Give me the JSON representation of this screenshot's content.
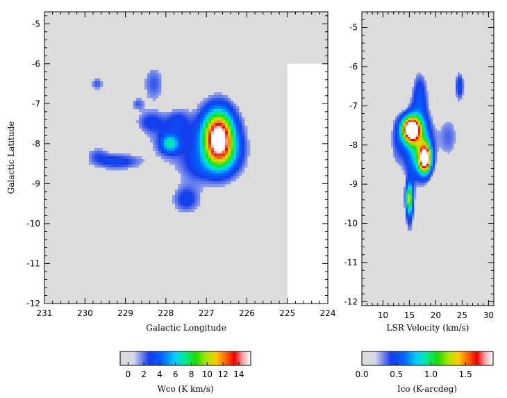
{
  "chart_data": [
    {
      "type": "heatmap",
      "title": "",
      "xlabel": "Galactic Longitude",
      "ylabel": "Galactic Latitude",
      "xlim": [
        231,
        224
      ],
      "ylim": [
        -12,
        -4.7
      ],
      "x_ticks": [
        "231",
        "230",
        "229",
        "228",
        "227",
        "226",
        "225",
        "224"
      ],
      "y_ticks": [
        "-5",
        "-6",
        "-7",
        "-8",
        "-9",
        "-10",
        "-11",
        "-12"
      ],
      "no_coverage_region": {
        "l_min": 224,
        "l_max": 225,
        "b_min": -12,
        "b_max": -6
      },
      "blobs": [
        {
          "l": 226.7,
          "b": -7.85,
          "sl": 0.25,
          "sb": 0.45,
          "peak": 14
        },
        {
          "l": 226.75,
          "b": -7.9,
          "sl": 0.5,
          "sb": 0.65,
          "peak": 3.2
        },
        {
          "l": 226.5,
          "b": -8.3,
          "sl": 0.3,
          "sb": 0.35,
          "peak": 2.6
        },
        {
          "l": 227.9,
          "b": -8.0,
          "sl": 0.15,
          "sb": 0.15,
          "peak": 5
        },
        {
          "l": 227.9,
          "b": -7.9,
          "sl": 0.4,
          "sb": 0.4,
          "peak": 2.2
        },
        {
          "l": 229.2,
          "b": -8.45,
          "sl": 0.45,
          "sb": 0.15,
          "peak": 3.1
        },
        {
          "l": 227.5,
          "b": -9.4,
          "sl": 0.25,
          "sb": 0.25,
          "peak": 3.0
        },
        {
          "l": 228.4,
          "b": -7.45,
          "sl": 0.25,
          "sb": 0.2,
          "peak": 2.4
        },
        {
          "l": 228.3,
          "b": -6.5,
          "sl": 0.2,
          "sb": 0.35,
          "peak": 2.3
        },
        {
          "l": 229.7,
          "b": -6.5,
          "sl": 0.12,
          "sb": 0.12,
          "peak": 2.3
        },
        {
          "l": 228.7,
          "b": -7.0,
          "sl": 0.12,
          "sb": 0.12,
          "peak": 2.0
        },
        {
          "l": 227.7,
          "b": -7.4,
          "sl": 0.2,
          "sb": 0.2,
          "peak": 1.8
        },
        {
          "l": 227.25,
          "b": -8.6,
          "sl": 0.35,
          "sb": 0.3,
          "peak": 1.8
        },
        {
          "l": 229.7,
          "b": -8.25,
          "sl": 0.2,
          "sb": 0.15,
          "peak": 1.6
        }
      ],
      "colorbar": {
        "label": "Wco (K km/s)",
        "range": [
          -1,
          15.5
        ],
        "ticks": [
          "0",
          "2",
          "4",
          "6",
          "8",
          "10",
          "12",
          "14"
        ]
      }
    },
    {
      "type": "heatmap",
      "title": "",
      "xlabel": "LSR Velocity (km/s)",
      "ylabel": "",
      "xlim": [
        6,
        31
      ],
      "ylim": [
        -12.1,
        -4.6
      ],
      "x_ticks": [
        "10",
        "15",
        "20",
        "25",
        "30"
      ],
      "y_ticks": [
        "-5",
        "-6",
        "-7",
        "-8",
        "-9",
        "-10",
        "-11",
        "-12"
      ],
      "blobs": [
        {
          "v": 15.3,
          "b": -7.6,
          "sv": 1.2,
          "sb": 0.22,
          "peak": 1.9
        },
        {
          "v": 18.0,
          "b": -8.35,
          "sv": 0.8,
          "sb": 0.25,
          "peak": 1.7
        },
        {
          "v": 16.7,
          "b": -8.0,
          "sv": 1.9,
          "sb": 0.65,
          "peak": 0.95
        },
        {
          "v": 15.0,
          "b": -9.35,
          "sv": 0.5,
          "sb": 0.25,
          "peak": 0.9
        },
        {
          "v": 15.0,
          "b": -9.7,
          "sv": 0.6,
          "sb": 0.5,
          "peak": 0.45
        },
        {
          "v": 17.0,
          "b": -6.6,
          "sv": 1.2,
          "sb": 0.45,
          "peak": 0.4
        },
        {
          "v": 24.5,
          "b": -6.5,
          "sv": 0.7,
          "sb": 0.3,
          "peak": 0.5
        },
        {
          "v": 22.5,
          "b": -7.8,
          "sv": 1.6,
          "sb": 0.5,
          "peak": 0.35
        },
        {
          "v": 12.5,
          "b": -7.9,
          "sv": 1.2,
          "sb": 0.6,
          "peak": 0.3
        }
      ],
      "colorbar": {
        "label": "Ico (K-arcdeg)",
        "range": [
          0,
          1.9
        ],
        "ticks": [
          "0.0",
          "0.5",
          "1.0",
          "1.5"
        ]
      }
    }
  ]
}
